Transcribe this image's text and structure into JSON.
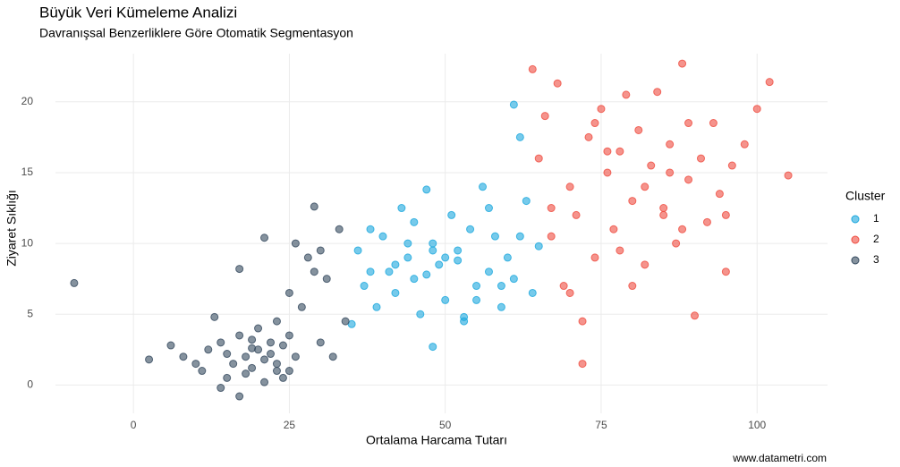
{
  "chart_data": {
    "type": "scatter",
    "title": "Büyük Veri Kümeleme Analizi",
    "subtitle": "Davranışsal Benzerliklere Göre Otomatik Segmentasyon",
    "x_label": "Ortalama Harcama Tutarı",
    "y_label": "Ziyaret Sıklığı",
    "caption": "www.datametri.com",
    "legend_title": "Cluster",
    "legend_position": "right",
    "grid": true,
    "xlim": [
      -12.5,
      111.3
    ],
    "xticks": [
      0,
      25,
      50,
      75,
      100
    ],
    "ylim": [
      -2,
      23.4
    ],
    "yticks": [
      0,
      5,
      10,
      15,
      20
    ],
    "series": [
      {
        "name": "1",
        "color": "#1aa7dd",
        "x": [
          35,
          36,
          37,
          38,
          39,
          40,
          41,
          42,
          43,
          44,
          45,
          46,
          47,
          48,
          48,
          49,
          50,
          51,
          52,
          53,
          54,
          55,
          56,
          57,
          58,
          59,
          60,
          61,
          62,
          63,
          64,
          65,
          42,
          45,
          50,
          55,
          61,
          62,
          47,
          52,
          57,
          38,
          44,
          59,
          48,
          53
        ],
        "values": [
          4.3,
          9.5,
          7.0,
          11.0,
          5.5,
          10.5,
          8.0,
          6.5,
          12.5,
          9.0,
          7.5,
          5.0,
          13.8,
          2.7,
          10.0,
          8.5,
          6.0,
          12.0,
          9.5,
          4.5,
          11.0,
          7.0,
          14.0,
          8.0,
          10.5,
          5.5,
          9.0,
          19.8,
          17.5,
          13.0,
          6.5,
          9.8,
          8.5,
          11.5,
          9.0,
          6.0,
          7.5,
          10.5,
          7.8,
          8.8,
          12.5,
          8.0,
          10.0,
          7.0,
          9.5,
          4.8
        ]
      },
      {
        "name": "2",
        "color": "#ef4b3f",
        "x": [
          64,
          65,
          66,
          67,
          68,
          69,
          70,
          71,
          72,
          73,
          74,
          75,
          76,
          77,
          78,
          79,
          80,
          81,
          82,
          83,
          84,
          85,
          86,
          87,
          88,
          89,
          90,
          91,
          92,
          93,
          94,
          95,
          96,
          98,
          100,
          102,
          105,
          72,
          78,
          85,
          89,
          70,
          76,
          82,
          88,
          95,
          67,
          74,
          80,
          86
        ],
        "values": [
          22.3,
          16.0,
          19.0,
          10.5,
          21.3,
          7.0,
          14.0,
          12.0,
          1.5,
          17.5,
          9.0,
          19.5,
          15.0,
          11.0,
          16.5,
          20.5,
          13.0,
          18.0,
          8.5,
          15.5,
          20.7,
          12.5,
          17.0,
          10.0,
          22.7,
          14.5,
          4.9,
          16.0,
          11.5,
          18.5,
          13.5,
          8.0,
          15.5,
          17.0,
          19.5,
          21.4,
          14.8,
          4.5,
          9.5,
          12.0,
          18.5,
          6.5,
          16.5,
          14.0,
          11.0,
          12.0,
          12.5,
          18.5,
          7.0,
          15.0
        ]
      },
      {
        "name": "3",
        "color": "#34495e",
        "x": [
          -9.5,
          2.5,
          6,
          8,
          10,
          11,
          12,
          13,
          14,
          15,
          15,
          16,
          17,
          17,
          18,
          18,
          19,
          19,
          20,
          20,
          21,
          21,
          22,
          22,
          23,
          23,
          24,
          24,
          25,
          25,
          26,
          27,
          28,
          29,
          30,
          31,
          33,
          34,
          17,
          21,
          25,
          29,
          30,
          32,
          14,
          19,
          23,
          26
        ],
        "values": [
          7.2,
          1.8,
          2.8,
          2.0,
          1.5,
          1.0,
          2.5,
          4.8,
          3.0,
          2.2,
          0.5,
          1.5,
          -0.8,
          3.5,
          2.0,
          0.8,
          3.2,
          1.2,
          2.5,
          4.0,
          1.8,
          0.2,
          3.0,
          2.2,
          1.5,
          4.5,
          2.8,
          0.5,
          3.5,
          1.0,
          10.0,
          5.5,
          9.0,
          12.6,
          9.5,
          7.5,
          11.0,
          4.5,
          8.2,
          10.4,
          6.5,
          8.0,
          3.0,
          2.0,
          -0.2,
          2.6,
          1.0,
          2.0
        ]
      }
    ]
  }
}
